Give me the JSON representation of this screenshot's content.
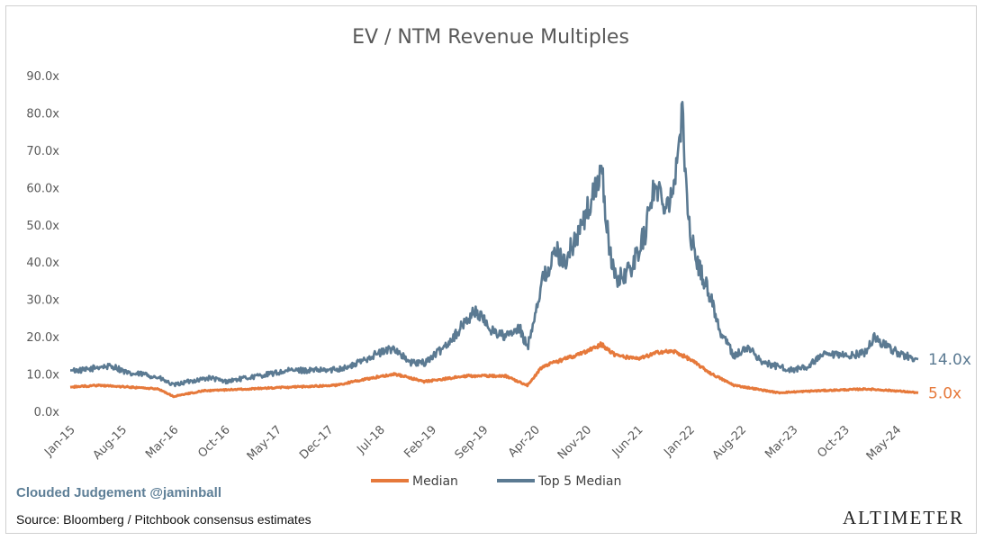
{
  "chart_data": {
    "type": "line",
    "title": "EV / NTM Revenue Multiples",
    "ylim": [
      0,
      90
    ],
    "yticks": [
      "0.0x",
      "10.0x",
      "20.0x",
      "30.0x",
      "40.0x",
      "50.0x",
      "60.0x",
      "70.0x",
      "80.0x",
      "90.0x"
    ],
    "grid": false,
    "legend_position": "bottom",
    "x_range": [
      "2015-01",
      "2024-08"
    ],
    "xticks": [
      "Jan-15",
      "Aug-15",
      "Mar-16",
      "Oct-16",
      "May-17",
      "Dec-17",
      "Jul-18",
      "Feb-19",
      "Sep-19",
      "Apr-20",
      "Nov-20",
      "Jun-21",
      "Jan-22",
      "Aug-22",
      "Mar-23",
      "Oct-23",
      "May-24"
    ],
    "series": [
      {
        "name": "Top 5 Median",
        "color": "#5b7a92",
        "end_label": "14.0x",
        "x": [
          "2015-01",
          "2015-03",
          "2015-05",
          "2015-07",
          "2015-09",
          "2015-11",
          "2016-01",
          "2016-02",
          "2016-03",
          "2016-05",
          "2016-08",
          "2016-10",
          "2017-01",
          "2017-04",
          "2017-07",
          "2017-10",
          "2017-12",
          "2018-03",
          "2018-06",
          "2018-09",
          "2018-11",
          "2019-01",
          "2019-03",
          "2019-05",
          "2019-07",
          "2019-08",
          "2019-10",
          "2019-12",
          "2020-02",
          "2020-03",
          "2020-05",
          "2020-07",
          "2020-08",
          "2020-10",
          "2020-12",
          "2021-01",
          "2021-02",
          "2021-03",
          "2021-05",
          "2021-07",
          "2021-08",
          "2021-10",
          "2021-11",
          "2021-12",
          "2022-01",
          "2022-02",
          "2022-04",
          "2022-05",
          "2022-07",
          "2022-09",
          "2022-11",
          "2023-01",
          "2023-03",
          "2023-05",
          "2023-07",
          "2023-09",
          "2023-11",
          "2024-01",
          "2024-02",
          "2024-04",
          "2024-06",
          "2024-08"
        ],
        "values": [
          11,
          11,
          12,
          12,
          10,
          10,
          9,
          8,
          7,
          8,
          9,
          8,
          9,
          10,
          11,
          11,
          11,
          12,
          15,
          17,
          13,
          13,
          16,
          20,
          25,
          27,
          22,
          20,
          22,
          17,
          35,
          43,
          40,
          48,
          58,
          66,
          45,
          35,
          38,
          48,
          60,
          56,
          62,
          79,
          48,
          40,
          30,
          22,
          15,
          17,
          13,
          12,
          11,
          12,
          15,
          15,
          15,
          16,
          20,
          17,
          15,
          14
        ]
      },
      {
        "name": "Median",
        "color": "#e6793b",
        "end_label": "5.0x",
        "x": [
          "2015-01",
          "2015-05",
          "2015-09",
          "2016-01",
          "2016-03",
          "2016-07",
          "2017-01",
          "2017-07",
          "2018-01",
          "2018-06",
          "2018-09",
          "2019-01",
          "2019-07",
          "2019-12",
          "2020-03",
          "2020-05",
          "2020-08",
          "2020-11",
          "2021-01",
          "2021-03",
          "2021-06",
          "2021-09",
          "2021-11",
          "2022-01",
          "2022-04",
          "2022-07",
          "2022-10",
          "2023-01",
          "2023-06",
          "2024-01",
          "2024-05",
          "2024-08"
        ],
        "values": [
          6.5,
          7,
          6.5,
          6,
          4,
          5.5,
          6,
          6.5,
          7,
          9,
          10,
          8,
          9.5,
          9.5,
          7,
          12,
          14,
          16,
          18,
          15,
          14,
          16,
          16,
          14,
          10,
          7,
          6,
          5,
          5.5,
          6,
          5.5,
          5
        ]
      }
    ]
  },
  "footer": {
    "brand": "Clouded Judgement @jaminball",
    "source": "Source: Bloomberg / Pitchbook consensus estimates",
    "logo": "ALTIMETER"
  }
}
